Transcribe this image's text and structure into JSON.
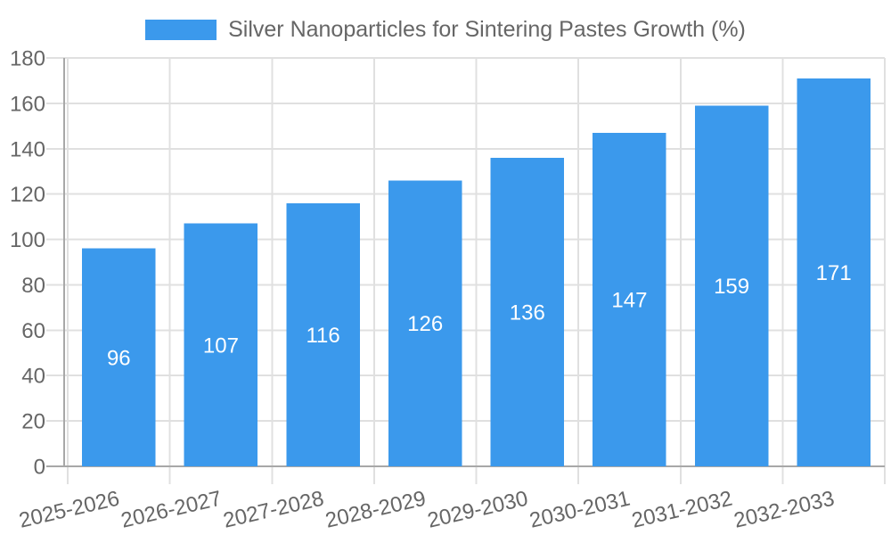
{
  "chart_data": {
    "type": "bar",
    "title": "Silver Nanoparticles for Sintering Pastes Growth (%)",
    "legend": {
      "position": "top",
      "label": "Silver Nanoparticles for Sintering Pastes Growth (%)"
    },
    "categories": [
      "2025-2026",
      "2026-2027",
      "2027-2028",
      "2028-2029",
      "2029-2030",
      "2030-2031",
      "2031-2032",
      "2032-2033"
    ],
    "values": [
      96,
      107,
      116,
      126,
      136,
      147,
      159,
      171
    ],
    "xlabel": "",
    "ylabel": "",
    "ylim": [
      0,
      180
    ],
    "ytick_step": 20,
    "yticks": [
      0,
      20,
      40,
      60,
      80,
      100,
      120,
      140,
      160,
      180
    ],
    "grid": true,
    "value_label_position": "inside-center",
    "x_label_rotation_deg": -13,
    "colors": {
      "bar": "#3b99ec",
      "value_label": "#ffffff",
      "tick_text": "#666666",
      "legend_text": "#666666",
      "grid": "#e0e0e0",
      "axis": "#a8a8a8",
      "background": "#ffffff"
    }
  }
}
